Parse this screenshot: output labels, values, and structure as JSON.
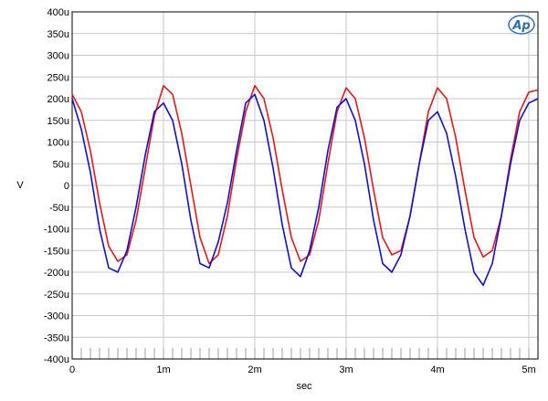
{
  "chart_data": {
    "type": "line",
    "xlabel": "sec",
    "ylabel": "V",
    "xlim": [
      0,
      0.0051
    ],
    "ylim": [
      -400,
      400
    ],
    "grid": true,
    "x_ticks": [
      0,
      0.001,
      0.002,
      0.003,
      0.004,
      0.005
    ],
    "x_tick_labels": [
      "0",
      "1m",
      "2m",
      "3m",
      "4m",
      "5m"
    ],
    "y_ticks": [
      400,
      350,
      300,
      250,
      200,
      150,
      100,
      50,
      0,
      -50,
      -100,
      -150,
      -200,
      -250,
      -300,
      -350,
      -400
    ],
    "y_tick_labels": [
      "400u",
      "350u",
      "300u",
      "250u",
      "200u",
      "150u",
      "100u",
      "50u",
      "0",
      "-50u",
      "-100u",
      "-150u",
      "-200u",
      "-250u",
      "-300u",
      "-350u",
      "-400u"
    ],
    "series": [
      {
        "color": "#e81818",
        "x": [
          0,
          0.0001,
          0.0002,
          0.0003,
          0.0004,
          0.0005,
          0.0006,
          0.0007,
          0.0008,
          0.0009,
          0.001,
          0.0011,
          0.0012,
          0.0013,
          0.0014,
          0.0015,
          0.0016,
          0.0017,
          0.0018,
          0.0019,
          0.002,
          0.0021,
          0.0022,
          0.0023,
          0.0024,
          0.0025,
          0.0026,
          0.0027,
          0.0028,
          0.0029,
          0.003,
          0.0031,
          0.0032,
          0.0033,
          0.0034,
          0.0035,
          0.0036,
          0.0037,
          0.0038,
          0.0039,
          0.004,
          0.0041,
          0.0042,
          0.0043,
          0.0044,
          0.0045,
          0.0046,
          0.0047,
          0.0048,
          0.0049,
          0.005,
          0.0051
        ],
        "values": [
          210,
          170,
          80,
          -40,
          -140,
          -175,
          -160,
          -80,
          40,
          160,
          230,
          210,
          120,
          0,
          -120,
          -180,
          -160,
          -70,
          60,
          170,
          230,
          200,
          110,
          -10,
          -120,
          -175,
          -160,
          -80,
          50,
          170,
          225,
          200,
          110,
          -10,
          -120,
          -160,
          -150,
          -70,
          50,
          170,
          225,
          200,
          110,
          -10,
          -120,
          -165,
          -150,
          -70,
          60,
          170,
          215,
          220
        ]
      },
      {
        "color": "#1010d0",
        "x": [
          0,
          0.0001,
          0.0002,
          0.0003,
          0.0004,
          0.0005,
          0.0006,
          0.0007,
          0.0008,
          0.0009,
          0.001,
          0.0011,
          0.0012,
          0.0013,
          0.0014,
          0.0015,
          0.0016,
          0.0017,
          0.0018,
          0.0019,
          0.002,
          0.0021,
          0.0022,
          0.0023,
          0.0024,
          0.0025,
          0.0026,
          0.0027,
          0.0028,
          0.0029,
          0.003,
          0.0031,
          0.0032,
          0.0033,
          0.0034,
          0.0035,
          0.0036,
          0.0037,
          0.0038,
          0.0039,
          0.004,
          0.0041,
          0.0042,
          0.0043,
          0.0044,
          0.0045,
          0.0046,
          0.0047,
          0.0048,
          0.0049,
          0.005,
          0.0051
        ],
        "values": [
          200,
          130,
          30,
          -100,
          -190,
          -200,
          -150,
          -50,
          70,
          170,
          190,
          150,
          50,
          -80,
          -180,
          -190,
          -130,
          -40,
          80,
          190,
          210,
          150,
          40,
          -90,
          -190,
          -210,
          -150,
          -50,
          80,
          180,
          200,
          150,
          50,
          -80,
          -180,
          -200,
          -160,
          -70,
          50,
          150,
          170,
          120,
          20,
          -100,
          -200,
          -230,
          -180,
          -70,
          50,
          150,
          190,
          200
        ]
      }
    ]
  },
  "logo": {
    "text": "Ap"
  }
}
